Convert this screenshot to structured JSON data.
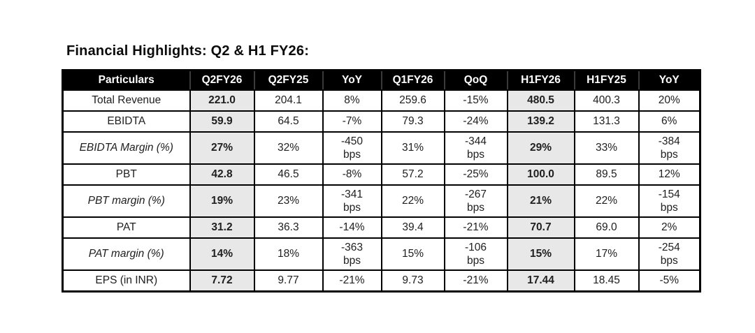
{
  "page_title": "Financial Highlights: Q2 & H1 FY26:",
  "table": {
    "columns": [
      "Particulars",
      "Q2FY26",
      "Q2FY25",
      "YoY",
      "Q1FY26",
      "QoQ",
      "H1FY26",
      "H1FY25",
      "YoY"
    ],
    "highlight_columns": [
      1,
      6
    ],
    "rows": [
      {
        "label": "Total Revenue",
        "italic": false,
        "values": [
          "221.0",
          "204.1",
          "8%",
          "259.6",
          "-15%",
          "480.5",
          "400.3",
          "20%"
        ]
      },
      {
        "label": "EBIDTA",
        "italic": false,
        "values": [
          "59.9",
          "64.5",
          "-7%",
          "79.3",
          "-24%",
          "139.2",
          "131.3",
          "6%"
        ]
      },
      {
        "label": "EBIDTA Margin (%)",
        "italic": true,
        "values": [
          "27%",
          "32%",
          "-450\nbps",
          "31%",
          "-344\nbps",
          "29%",
          "33%",
          "-384\nbps"
        ]
      },
      {
        "label": "PBT",
        "italic": false,
        "values": [
          "42.8",
          "46.5",
          "-8%",
          "57.2",
          "-25%",
          "100.0",
          "89.5",
          "12%"
        ]
      },
      {
        "label": "PBT margin (%)",
        "italic": true,
        "values": [
          "19%",
          "23%",
          "-341\nbps",
          "22%",
          "-267\nbps",
          "21%",
          "22%",
          "-154\nbps"
        ]
      },
      {
        "label": "PAT",
        "italic": false,
        "values": [
          "31.2",
          "36.3",
          "-14%",
          "39.4",
          "-21%",
          "70.7",
          "69.0",
          "2%"
        ]
      },
      {
        "label": "PAT margin (%)",
        "italic": true,
        "values": [
          "14%",
          "18%",
          "-363\nbps",
          "15%",
          "-106\nbps",
          "15%",
          "17%",
          "-254\nbps"
        ]
      },
      {
        "label": "EPS (in INR)",
        "italic": false,
        "values": [
          "7.72",
          "9.77",
          "-21%",
          "9.73",
          "-21%",
          "17.44",
          "18.45",
          "-5%"
        ]
      }
    ],
    "colors": {
      "header_bg": "#000000",
      "header_text": "#ffffff",
      "highlight_bg": "#e8e8e8",
      "border": "#000000",
      "text": "#202020"
    }
  }
}
